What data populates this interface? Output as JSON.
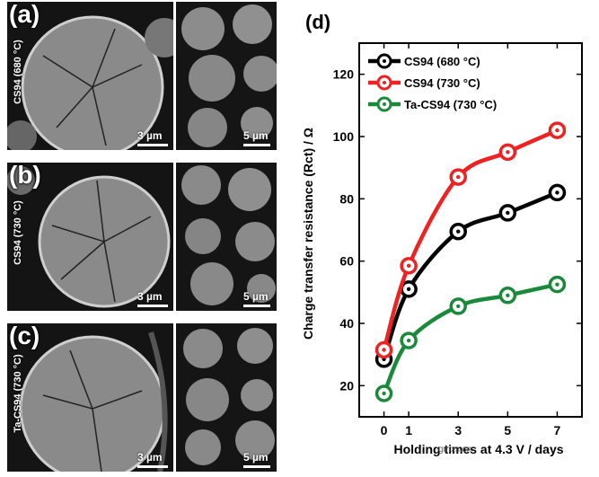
{
  "left_panels": [
    {
      "label": "(a)",
      "sample": "CS94 (680 °C)",
      "scale_left": "3 µm",
      "scale_right": "5 µm"
    },
    {
      "label": "(b)",
      "sample": "CS94 (730 °C)",
      "scale_left": "3 µm",
      "scale_right": "5 µm"
    },
    {
      "label": "(c)",
      "sample": "Ta-CS94 (730 °C)",
      "scale_left": "3 µm",
      "scale_right": "5 µm"
    }
  ],
  "chart_data": {
    "panel_label": "(d)",
    "type": "line",
    "x": [
      0,
      1,
      3,
      5,
      7
    ],
    "xtick_labels": [
      "0",
      "1",
      "3",
      "5",
      "7"
    ],
    "xlabel": "Holding times at 4.3 V / days",
    "ylabel": "Charge transfer resistance (Rct) / Ω",
    "ylim": [
      10,
      130
    ],
    "yticks": [
      20,
      40,
      60,
      80,
      100,
      120
    ],
    "series": [
      {
        "name": "CS94 (680 °C)",
        "color": "#000000",
        "values": [
          28.5,
          51,
          69.5,
          75.5,
          82
        ]
      },
      {
        "name": "CS94 (730 °C)",
        "color": "#ee2222",
        "values": [
          31.5,
          58.5,
          87,
          95,
          102
        ]
      },
      {
        "name": "Ta-CS94 (730 °C)",
        "color": "#1a8a3a",
        "values": [
          17.5,
          34.5,
          45.5,
          49,
          52.5
        ]
      }
    ],
    "watermark": "gmxs.cn"
  }
}
